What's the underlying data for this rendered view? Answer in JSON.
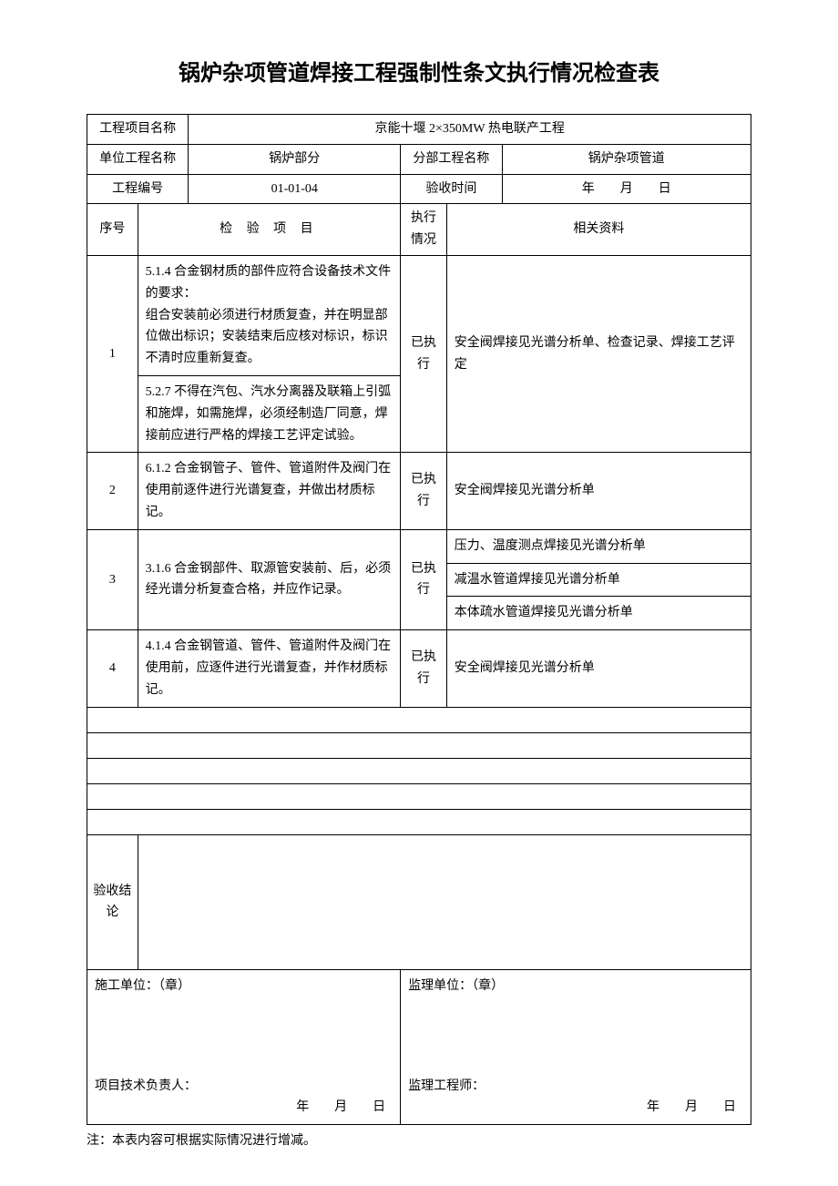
{
  "title": "锅炉杂项管道焊接工程强制性条文执行情况检查表",
  "header": {
    "projectNameLabel": "工程项目名称",
    "projectNameValue": "京能十堰 2×350MW 热电联产工程",
    "unitProjectLabel": "单位工程名称",
    "unitProjectValue": "锅炉部分",
    "subProjectLabel": "分部工程名称",
    "subProjectValue": "锅炉杂项管道",
    "projectNoLabel": "工程编号",
    "projectNoValue": "01-01-04",
    "acceptTimeLabel": "验收时间",
    "acceptTimeValue": "年　　月　　日"
  },
  "columns": {
    "seq": "序号",
    "item": "检 验 项 目",
    "exec": "执行情况",
    "material": "相关资料"
  },
  "rows": [
    {
      "seq": "1",
      "items": [
        "5.1.4 合金钢材质的部件应符合设备技术文件的要求：\n组合安装前必须进行材质复查，并在明显部位做出标识；安装结束后应核对标识，标识不清时应重新复查。",
        "5.2.7 不得在汽包、汽水分离器及联箱上引弧和施焊，如需施焊，必须经制造厂同意，焊接前应进行严格的焊接工艺评定试验。"
      ],
      "exec": "已执行",
      "material": "安全阀焊接见光谱分析单、检查记录、焊接工艺评定"
    },
    {
      "seq": "2",
      "items": [
        "6.1.2 合金钢管子、管件、管道附件及阀门在使用前逐件进行光谱复查，并做出材质标记。"
      ],
      "exec": "已执行",
      "material": "安全阀焊接见光谱分析单"
    },
    {
      "seq": "3",
      "items": [
        "3.1.6 合金钢部件、取源管安装前、后，必须经光谱分析复查合格，并应作记录。"
      ],
      "exec": "已执行",
      "materials": [
        "压力、温度测点焊接见光谱分析单",
        "减温水管道焊接见光谱分析单",
        "本体疏水管道焊接见光谱分析单"
      ]
    },
    {
      "seq": "4",
      "items": [
        "4.1.4 合金钢管道、管件、管道附件及阀门在使用前，应逐件进行光谱复查，并作材质标记。"
      ],
      "exec": "已执行",
      "material": "安全阀焊接见光谱分析单"
    }
  ],
  "conclusion": {
    "label": "验收结论"
  },
  "signatures": {
    "constructionUnit": "施工单位：（章）",
    "projectTechLead": "项目技术负责人：",
    "supervisionUnit": "监理单位：（章）",
    "supervisionEngineer": "监理工程师：",
    "dateLine": "年　　月　　日"
  },
  "note": "注：本表内容可根据实际情况进行增减。"
}
